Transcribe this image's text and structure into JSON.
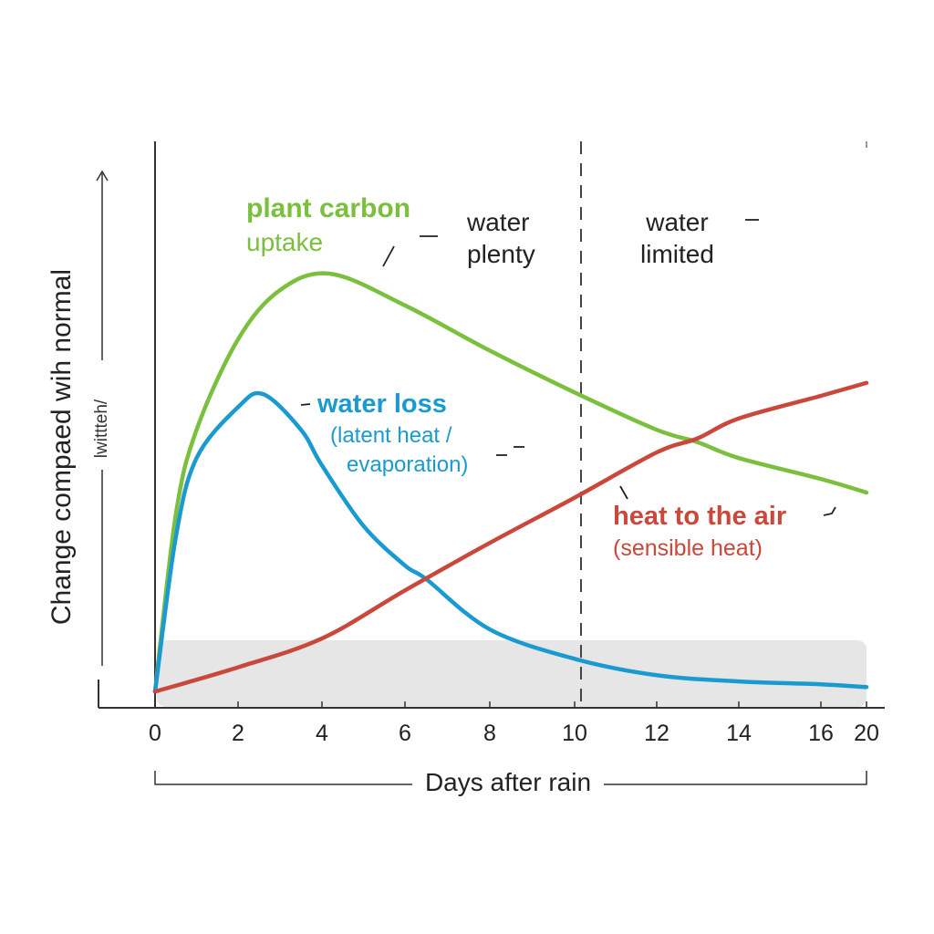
{
  "chart_data": {
    "type": "line",
    "title": "",
    "xlabel": "Days after rain",
    "ylabel": "Change compaed wih normal",
    "ylabel_sub": "lwittteh/",
    "x_ticks": [
      "0",
      "2",
      "4",
      "6",
      "8",
      "10",
      "12",
      "14",
      "16",
      "20"
    ],
    "x_tick_values": [
      0,
      2,
      4,
      6,
      8,
      10,
      12,
      14,
      16,
      20
    ],
    "xlim": [
      0,
      20
    ],
    "ylim": [
      0,
      100
    ],
    "grid": false,
    "regions": [
      {
        "label": "water plenty",
        "from": 0,
        "to": 10.2
      },
      {
        "label": "water limited",
        "from": 10.2,
        "to": 20
      }
    ],
    "divider_x": 10.2,
    "series": [
      {
        "name": "plant carbon uptake",
        "color": "#7bbf3e",
        "x": [
          0,
          0.5,
          1,
          2,
          3,
          4.2,
          6,
          8,
          10,
          12,
          13,
          14,
          16,
          20
        ],
        "y": [
          2.7,
          34,
          49,
          65,
          73.7,
          76.6,
          71,
          63,
          55.6,
          49,
          46.8,
          44,
          40.3,
          37.9
        ]
      },
      {
        "name": "water loss",
        "color": "#1a9ad0",
        "x": [
          0,
          0.5,
          1,
          2,
          2.6,
          3.5,
          4,
          5,
          6,
          6.5,
          8,
          10,
          12,
          14,
          16,
          20
        ],
        "y": [
          2.7,
          30,
          44,
          53,
          55.3,
          49,
          42.7,
          32,
          25,
          22.6,
          13.7,
          8.5,
          5.6,
          4.5,
          4,
          3.5
        ]
      },
      {
        "name": "heat to the air",
        "color": "#c9473b",
        "x": [
          0,
          2,
          4,
          6,
          8,
          10,
          12,
          13,
          14,
          16,
          20
        ],
        "y": [
          2.7,
          7,
          12.1,
          20.6,
          29,
          37,
          45,
          47.5,
          51,
          55,
          57.3
        ]
      }
    ]
  },
  "annotations": {
    "plant_carbon_1": "plant carbon",
    "plant_carbon_2": "uptake",
    "water_plenty_1": "water",
    "water_plenty_2": "plenty",
    "water_limited_1": "water",
    "water_limited_2": "limited",
    "water_loss_1": "water loss",
    "water_loss_2": "(latent heat /",
    "water_loss_3": "evaporation)",
    "heat_air_1": "heat to the air",
    "heat_air_2": "(sensible heat)"
  },
  "colors": {
    "green": "#7bbf3e",
    "blue": "#1a9ad0",
    "red": "#c9473b",
    "band": "#e6e6e6"
  }
}
